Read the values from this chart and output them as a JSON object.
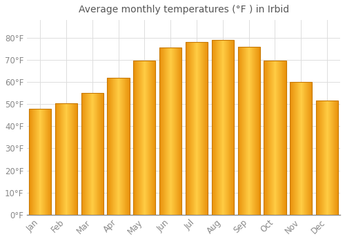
{
  "title": "Average monthly temperatures (°F ) in Irbid",
  "months": [
    "Jan",
    "Feb",
    "Mar",
    "Apr",
    "May",
    "Jun",
    "Jul",
    "Aug",
    "Sep",
    "Oct",
    "Nov",
    "Dec"
  ],
  "values": [
    48,
    50.5,
    55,
    62,
    69.5,
    75.5,
    78,
    79,
    76,
    69.5,
    60,
    51.5
  ],
  "bar_color_center": "#FFD966",
  "bar_color_edge": "#E8900A",
  "background_color": "#FFFFFF",
  "grid_color": "#DDDDDD",
  "text_color": "#888888",
  "ylim": [
    0,
    88
  ],
  "yticks": [
    0,
    10,
    20,
    30,
    40,
    50,
    60,
    70,
    80
  ],
  "title_fontsize": 10,
  "tick_fontsize": 8.5,
  "bar_width": 0.85
}
